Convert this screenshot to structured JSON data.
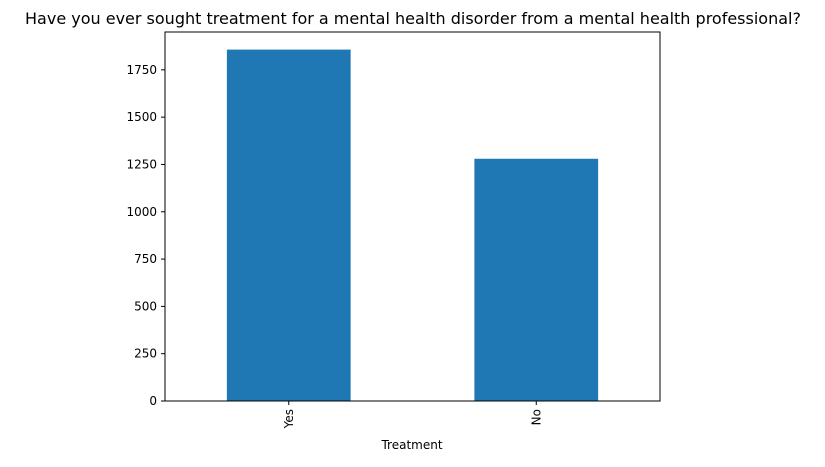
{
  "chart_data": {
    "type": "bar",
    "title": "Have you ever sought treatment for a mental health disorder from a mental health professional?",
    "xlabel": "Treatment",
    "ylabel": "",
    "categories": [
      "Yes",
      "No"
    ],
    "values": [
      1857,
      1280
    ],
    "ylim": [
      0,
      1950
    ],
    "yticks": [
      0,
      250,
      500,
      750,
      1000,
      1250,
      1500,
      1750
    ],
    "grid": false,
    "legend": "none",
    "bar_color": "#1f77b4"
  }
}
